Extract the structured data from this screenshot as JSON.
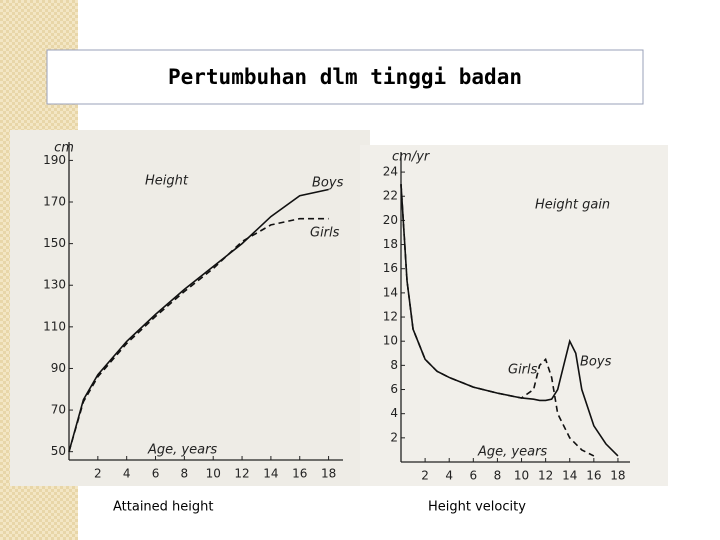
{
  "title": "Pertumbuhan dlm tinggi badan",
  "captions": [
    "Attained height",
    "Height  velocity"
  ],
  "chart_data": [
    {
      "type": "line",
      "title": "Height",
      "ylabel": "cm",
      "xlabel": "Age, years",
      "x": [
        0,
        1,
        2,
        4,
        6,
        8,
        10,
        12,
        14,
        16,
        18
      ],
      "series": [
        {
          "name": "Boys",
          "color": "#111111",
          "line_style": "solid",
          "values": [
            50,
            75,
            87,
            103,
            116,
            128,
            139,
            150,
            163,
            173,
            176
          ]
        },
        {
          "name": "Girls",
          "color": "#111111",
          "line_style": "dashed",
          "values": [
            50,
            74,
            86,
            102,
            115,
            127,
            138,
            151,
            159,
            162,
            162
          ]
        }
      ],
      "xlim": [
        0,
        19
      ],
      "ylim": [
        46,
        195
      ],
      "xticks": [
        2,
        4,
        6,
        8,
        10,
        12,
        14,
        16,
        18
      ],
      "yticks": [
        50,
        70,
        90,
        110,
        130,
        150,
        170,
        190
      ]
    },
    {
      "type": "line",
      "title": "Height gain",
      "ylabel": "cm/yr",
      "xlabel": "Age, years",
      "x": [
        0,
        0.5,
        1,
        2,
        3,
        4,
        6,
        8,
        10,
        11,
        11.5,
        12,
        12.5,
        13,
        13.5,
        14,
        14.5,
        15,
        16,
        17,
        18
      ],
      "series": [
        {
          "name": "Boys",
          "color": "#111111",
          "line_style": "solid",
          "values": [
            23,
            15,
            11,
            8.5,
            7.5,
            7,
            6.2,
            5.7,
            5.3,
            5.2,
            5.1,
            5.1,
            5.2,
            6,
            8,
            10,
            9,
            6,
            3,
            1.5,
            0.5
          ]
        },
        {
          "name": "Girls",
          "color": "#111111",
          "line_style": "dashed",
          "values": [
            23,
            15,
            11,
            8.5,
            7.5,
            7,
            6.2,
            5.7,
            5.3,
            6,
            8,
            8.5,
            7,
            4,
            3,
            2,
            1.5,
            1,
            0.5,
            null,
            null
          ]
        }
      ],
      "xlim": [
        0,
        19
      ],
      "ylim": [
        0,
        25
      ],
      "xticks": [
        2,
        4,
        6,
        8,
        10,
        12,
        14,
        16,
        18
      ],
      "yticks": [
        2,
        4,
        6,
        8,
        10,
        12,
        14,
        16,
        18,
        20,
        22,
        24
      ]
    }
  ]
}
